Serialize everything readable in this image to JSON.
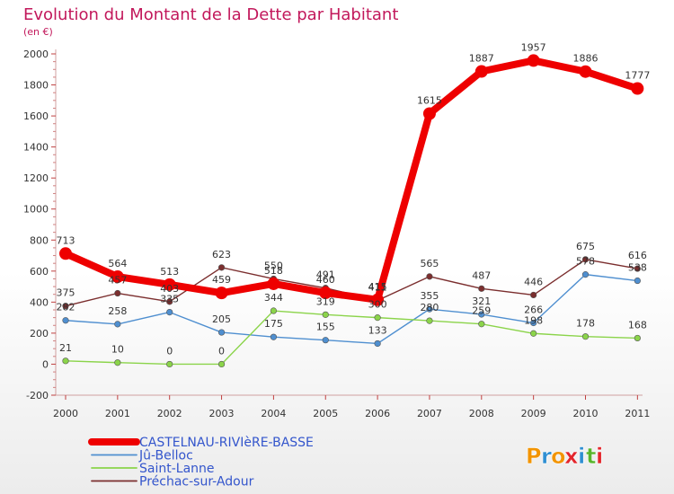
{
  "title": "Evolution du Montant de la Dette par Habitant",
  "subtitle": "(en €)",
  "logo": {
    "text": "Proxiti",
    "letters": [
      "P",
      "r",
      "o",
      "x",
      "i",
      "t",
      "i"
    ],
    "colors": [
      "#f29400",
      "#2f8fd2",
      "#f29400",
      "#e3262c",
      "#2f8fd2",
      "#58b52c",
      "#e3262c"
    ]
  },
  "chart_data": {
    "type": "line",
    "title": "Evolution du Montant de la Dette par Habitant",
    "subtitle": "(en €)",
    "x": [
      "2000",
      "2001",
      "2002",
      "2003",
      "2004",
      "2005",
      "2006",
      "2007",
      "2008",
      "2009",
      "2010",
      "2011"
    ],
    "yticks": [
      "-200",
      "0",
      "200",
      "400",
      "600",
      "800",
      "1000",
      "1200",
      "1400",
      "1600",
      "1800",
      "2000"
    ],
    "ylim": [
      -200,
      2000
    ],
    "grid": false,
    "legend_position": "bottom-left",
    "series": [
      {
        "name": "CASTELNAU-RIVIèRE-BASSE",
        "color": "#ee0000",
        "values": [
          713,
          564,
          513,
          459,
          518,
          460,
          415,
          1615,
          1887,
          1957,
          1886,
          1777
        ],
        "labels": [
          "713",
          "564",
          "513",
          "459",
          "518",
          "460",
          "415",
          "1615",
          "1887",
          "1957",
          "1886",
          "1777"
        ]
      },
      {
        "name": "Jû-Belloc",
        "color": "#4f8fd0",
        "values": [
          282,
          258,
          335,
          205,
          175,
          155,
          133,
          355,
          321,
          266,
          578,
          538
        ],
        "labels": [
          "282",
          "258",
          "335",
          "205",
          "175",
          "155",
          "133",
          "355",
          "321",
          "266",
          "578",
          "538"
        ]
      },
      {
        "name": "Saint-Lanne",
        "color": "#8bd44a",
        "values": [
          21,
          10,
          0,
          0,
          344,
          319,
          300,
          280,
          259,
          198,
          178,
          168
        ],
        "labels": [
          "21",
          "10",
          "0",
          "0",
          "344",
          "319",
          "300",
          "280",
          "259",
          "198",
          "178",
          "168"
        ]
      },
      {
        "name": "Préchac-sur-Adour",
        "color": "#7b2e2e",
        "values": [
          375,
          457,
          403,
          623,
          550,
          491,
          411,
          565,
          487,
          446,
          675,
          616
        ],
        "labels": [
          "375",
          "457",
          "403",
          "623",
          "550",
          "491",
          "411",
          "565",
          "487",
          "446",
          "675",
          "616"
        ]
      }
    ]
  }
}
